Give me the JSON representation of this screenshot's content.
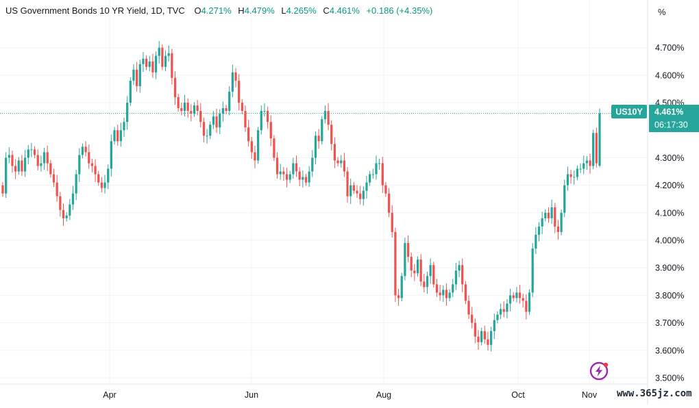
{
  "legend": {
    "symbol_title": "US Government Bonds 10 YR Yield, 1D, TVC",
    "o_label": "O",
    "o_value": "4.271%",
    "h_label": "H",
    "h_value": "4.479%",
    "l_label": "L",
    "l_value": "4.265%",
    "c_label": "C",
    "c_value": "4.461%",
    "change": "+0.186 (+4.35%)"
  },
  "unit_label": "%",
  "price_tag": {
    "symbol": "US10Y",
    "price": "4.461%",
    "countdown": "06:17:30",
    "color": "#26a69a"
  },
  "colors": {
    "up": "#26a69a",
    "down": "#ef5350",
    "grid": "#f0f3fa",
    "last_line": "#26a69a",
    "logo": "#9c27b0"
  },
  "watermark": "www.365jz.com",
  "logo_icon": "lightning-bolt-icon",
  "chart_data": {
    "type": "candlestick",
    "x_labels": [
      "Apr",
      "Jun",
      "Aug",
      "Oct",
      "Nov"
    ],
    "y_ticks": [
      "4.700%",
      "4.600%",
      "4.500%",
      "4.300%",
      "4.200%",
      "4.100%",
      "4.000%",
      "3.900%",
      "3.800%",
      "3.700%",
      "3.600%",
      "3.500%"
    ],
    "y_tick_values": [
      4.7,
      4.6,
      4.5,
      4.3,
      4.2,
      4.1,
      4.0,
      3.9,
      3.8,
      3.7,
      3.6,
      3.5
    ],
    "ylim": [
      3.5,
      4.75
    ],
    "last_price": 4.461,
    "grid": true,
    "closes": [
      4.17,
      4.3,
      4.31,
      4.27,
      4.25,
      4.29,
      4.25,
      4.3,
      4.33,
      4.33,
      4.31,
      4.27,
      4.28,
      4.32,
      4.28,
      4.24,
      4.21,
      4.16,
      4.11,
      4.08,
      4.09,
      4.13,
      4.17,
      4.24,
      4.31,
      4.34,
      4.32,
      4.28,
      4.27,
      4.24,
      4.21,
      4.19,
      4.21,
      4.26,
      4.36,
      4.4,
      4.36,
      4.4,
      4.43,
      4.5,
      4.58,
      4.62,
      4.56,
      4.64,
      4.66,
      4.63,
      4.65,
      4.61,
      4.67,
      4.7,
      4.63,
      4.67,
      4.68,
      4.59,
      4.52,
      4.48,
      4.47,
      4.5,
      4.47,
      4.46,
      4.49,
      4.47,
      4.43,
      4.38,
      4.38,
      4.42,
      4.45,
      4.41,
      4.46,
      4.48,
      4.47,
      4.54,
      4.61,
      4.58,
      4.5,
      4.47,
      4.41,
      4.36,
      4.32,
      4.29,
      4.4,
      4.47,
      4.47,
      4.43,
      4.37,
      4.3,
      4.24,
      4.25,
      4.24,
      4.22,
      4.24,
      4.28,
      4.25,
      4.22,
      4.23,
      4.21,
      4.25,
      4.3,
      4.38,
      4.36,
      4.44,
      4.47,
      4.42,
      4.35,
      4.29,
      4.28,
      4.29,
      4.25,
      4.16,
      4.2,
      4.18,
      4.17,
      4.15,
      4.18,
      4.21,
      4.24,
      4.24,
      4.28,
      4.28,
      4.2,
      4.17,
      4.1,
      4.03,
      3.8,
      3.79,
      3.87,
      3.99,
      3.94,
      3.89,
      3.88,
      3.93,
      3.85,
      3.83,
      3.87,
      3.91,
      3.84,
      3.81,
      3.8,
      3.82,
      3.79,
      3.81,
      3.84,
      3.89,
      3.91,
      3.84,
      3.78,
      3.73,
      3.7,
      3.65,
      3.63,
      3.67,
      3.64,
      3.62,
      3.67,
      3.71,
      3.73,
      3.75,
      3.74,
      3.77,
      3.8,
      3.79,
      3.81,
      3.79,
      3.78,
      3.74,
      3.81,
      3.97,
      4.02,
      4.05,
      4.08,
      4.1,
      4.08,
      4.12,
      4.05,
      4.03,
      4.1,
      4.2,
      4.24,
      4.23,
      4.23,
      4.26,
      4.26,
      4.28,
      4.29,
      4.27,
      4.39,
      4.28,
      4.461
    ]
  }
}
